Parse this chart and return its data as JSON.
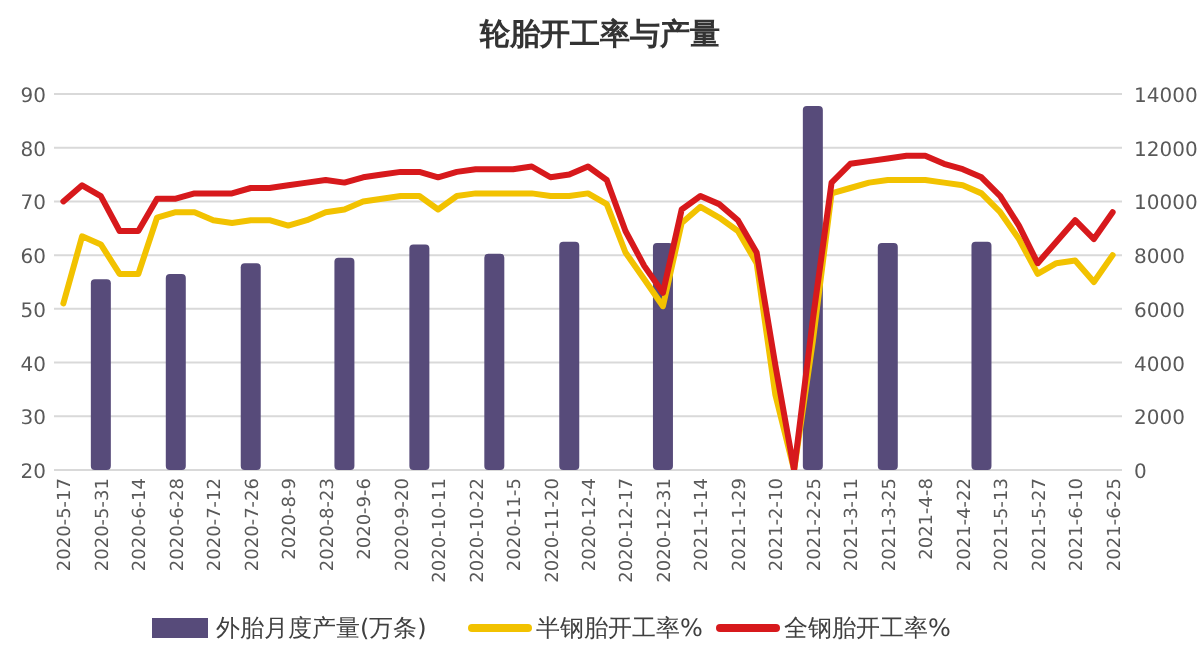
{
  "chart_data": {
    "type": "bar",
    "title": "轮胎开工率与产量",
    "categories": [
      "2020-5-17",
      null,
      "2020-5-31",
      null,
      "2020-6-14",
      null,
      "2020-6-28",
      null,
      "2020-7-12",
      null,
      "2020-7-26",
      null,
      "2020-8-9",
      null,
      "2020-8-23",
      null,
      "2020-9-6",
      null,
      "2020-9-20",
      null,
      "2020-10-11",
      null,
      "2020-10-22",
      null,
      "2020-11-5",
      null,
      "2020-11-20",
      null,
      "2020-12-4",
      null,
      "2020-12-17",
      null,
      "2020-12-31",
      null,
      "2021-1-14",
      null,
      "2021-1-29",
      null,
      "2021-2-10",
      null,
      "2021-2-25",
      null,
      "2021-3-11",
      null,
      "2021-3-25",
      null,
      "2021-4-8",
      null,
      "2021-4-22",
      null,
      "2021-5-13",
      null,
      "2021-5-27",
      null,
      "2021-6-10",
      null,
      "2021-6-25"
    ],
    "series": [
      {
        "name": "外胎月度产量(万条)",
        "axis": "y2",
        "color": "#574b7a",
        "values": [
          null,
          null,
          7100,
          null,
          null,
          null,
          7300,
          null,
          null,
          null,
          7700,
          null,
          null,
          null,
          null,
          7900,
          null,
          null,
          null,
          8400,
          null,
          null,
          null,
          8050,
          null,
          null,
          null,
          8500,
          null,
          null,
          null,
          null,
          8450,
          null,
          null,
          null,
          null,
          null,
          null,
          null,
          13550,
          null,
          null,
          null,
          8450,
          null,
          null,
          null,
          null,
          8500,
          null,
          null,
          null,
          null,
          null,
          null,
          null
        ]
      },
      {
        "name": "半钢胎开工率%",
        "type": "line",
        "color": "#f2c200",
        "values": [
          51,
          63.5,
          62,
          56.5,
          56.5,
          67,
          68,
          68,
          66.5,
          66,
          66.5,
          66.5,
          65.5,
          66.5,
          68,
          68.5,
          70,
          70.5,
          71,
          71,
          68.5,
          71,
          71.5,
          71.5,
          71.5,
          71.5,
          71,
          71,
          71.5,
          69.5,
          60.5,
          55.5,
          50.5,
          66,
          69,
          67,
          64.5,
          58.5,
          34,
          20,
          44,
          71.5,
          72.5,
          73.5,
          74,
          74,
          74,
          73.5,
          73,
          71.5,
          68,
          63,
          56.5,
          58.5,
          59,
          55,
          60
        ]
      },
      {
        "name": "全钢胎开工率%",
        "type": "line",
        "color": "#d7191c",
        "values": [
          70,
          73,
          71,
          64.5,
          64.5,
          70.5,
          70.5,
          71.5,
          71.5,
          71.5,
          72.5,
          72.5,
          73,
          73.5,
          74,
          73.5,
          74.5,
          75,
          75.5,
          75.5,
          74.5,
          75.5,
          76,
          76,
          76,
          76.5,
          74.5,
          75,
          76.5,
          74,
          64.5,
          58,
          53,
          68.5,
          71,
          69.5,
          66.5,
          60.5,
          39.5,
          20,
          48,
          73.5,
          77,
          77.5,
          78,
          78.5,
          78.5,
          77,
          76,
          74.5,
          71,
          65.5,
          58.5,
          62.5,
          66.5,
          63,
          68
        ]
      }
    ],
    "ylim": [
      20,
      90
    ],
    "yticks": [
      20,
      30,
      40,
      50,
      60,
      70,
      80,
      90
    ],
    "y2lim": [
      0,
      14000
    ],
    "y2ticks": [
      0,
      2000,
      4000,
      6000,
      8000,
      10000,
      12000,
      14000
    ],
    "grid": "y",
    "legend": "bottom"
  }
}
